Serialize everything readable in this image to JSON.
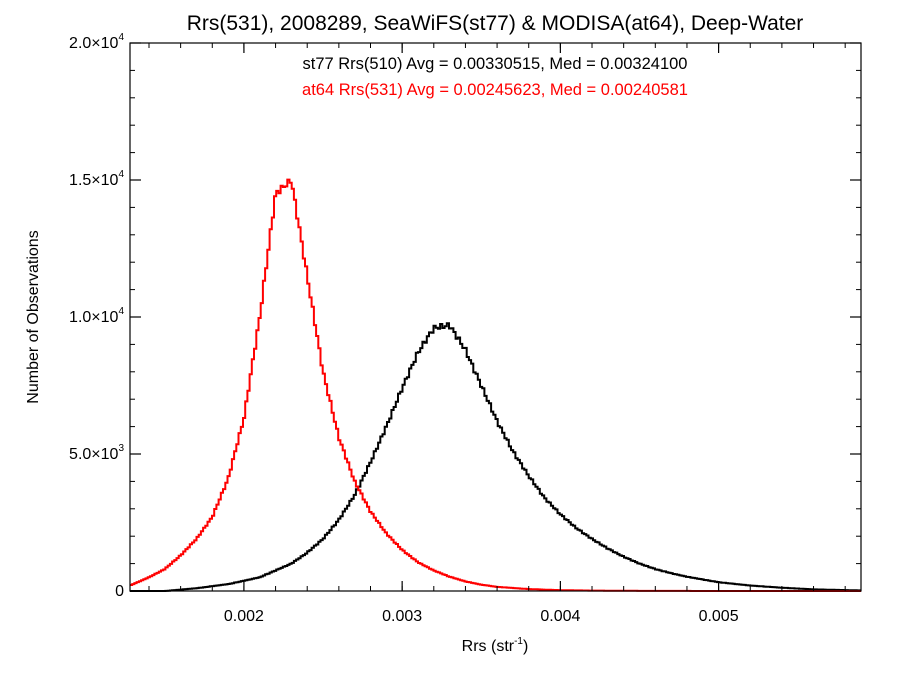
{
  "chart_data": {
    "type": "line",
    "title": "Rrs(531), 2008289, SeaWiFS(st77) & MODISA(at64), Deep-Water",
    "xlabel": "Rrs (str",
    "xlabel_sup": "-1",
    "xlabel_close": ")",
    "ylabel": "Number of Observations",
    "xlim": [
      0.00128,
      0.0059
    ],
    "ylim": [
      0,
      20000
    ],
    "grid": false,
    "x_ticks": [
      {
        "value": 0.002,
        "label": "0.002"
      },
      {
        "value": 0.003,
        "label": "0.003"
      },
      {
        "value": 0.004,
        "label": "0.004"
      },
      {
        "value": 0.005,
        "label": "0.005"
      }
    ],
    "y_ticks": [
      {
        "value": 0,
        "mantissa": "0",
        "exp": ""
      },
      {
        "value": 5000,
        "mantissa": "5.0×10",
        "exp": "3"
      },
      {
        "value": 10000,
        "mantissa": "1.0×10",
        "exp": "4"
      },
      {
        "value": 15000,
        "mantissa": "1.5×10",
        "exp": "4"
      },
      {
        "value": 20000,
        "mantissa": "2.0×10",
        "exp": "4"
      }
    ],
    "annotations": [
      {
        "text": "st77 Rrs(510) Avg = 0.00330515, Med = 0.00324100",
        "color": "#000000"
      },
      {
        "text": "at64 Rrs(531) Avg = 0.00245623, Med = 0.00240581",
        "color": "#ff0000"
      }
    ],
    "series": [
      {
        "color": "#000000",
        "x": [
          0.00128,
          0.0015,
          0.0017,
          0.0019,
          0.0021,
          0.0023,
          0.0024,
          0.0025,
          0.0026,
          0.0027,
          0.0028,
          0.0029,
          0.003,
          0.0031,
          0.0032,
          0.0033,
          0.0034,
          0.0035,
          0.0036,
          0.0037,
          0.0038,
          0.0039,
          0.004,
          0.0041,
          0.0042,
          0.0043,
          0.0044,
          0.0045,
          0.0046,
          0.0047,
          0.0048,
          0.0049,
          0.005,
          0.0052,
          0.0054,
          0.0056,
          0.0059
        ],
        "y": [
          0,
          0,
          100,
          250,
          500,
          1000,
          1400,
          1900,
          2600,
          3500,
          4700,
          6000,
          7400,
          8700,
          9600,
          9700,
          8800,
          7500,
          6200,
          5100,
          4200,
          3400,
          2800,
          2300,
          1900,
          1550,
          1250,
          1000,
          800,
          650,
          520,
          420,
          320,
          200,
          120,
          60,
          20
        ]
      },
      {
        "color": "#ff0000",
        "x": [
          0.00128,
          0.0014,
          0.0015,
          0.0016,
          0.0017,
          0.0018,
          0.0019,
          0.002,
          0.0021,
          0.0022,
          0.0023,
          0.0024,
          0.0025,
          0.0026,
          0.0027,
          0.0028,
          0.0029,
          0.003,
          0.0031,
          0.0032,
          0.0033,
          0.0034,
          0.0035,
          0.0036,
          0.0038,
          0.004,
          0.0042,
          0.0045,
          0.005,
          0.0059
        ],
        "y": [
          200,
          500,
          800,
          1300,
          1900,
          2700,
          4100,
          6300,
          10000,
          14500,
          15000,
          11500,
          8000,
          5600,
          4000,
          2900,
          2100,
          1500,
          1050,
          750,
          520,
          350,
          230,
          150,
          70,
          30,
          15,
          5,
          0,
          0
        ]
      }
    ]
  }
}
